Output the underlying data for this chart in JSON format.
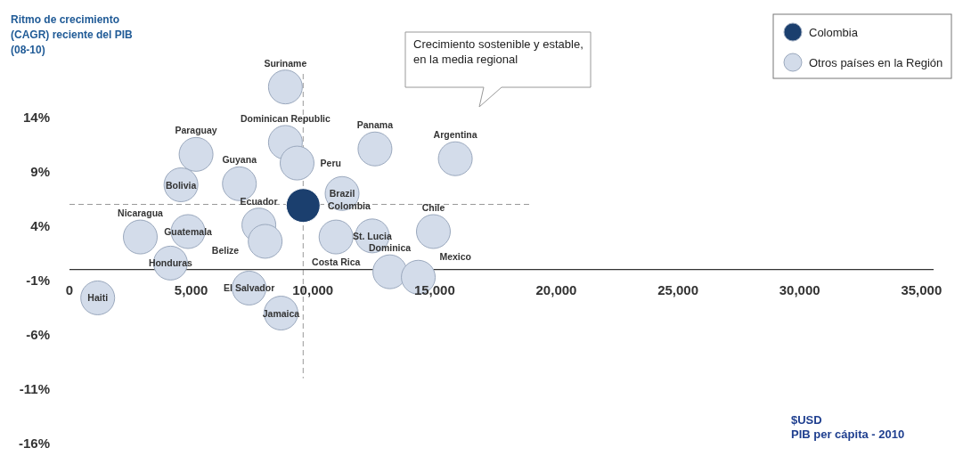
{
  "chart_data": {
    "type": "scatter",
    "ylabel": "Ritmo de crecimiento\n(CAGR) reciente del PIB\n(08-10)",
    "xlabel": "$USD\nPIB per cápita - 2010",
    "xlim": [
      0,
      35500
    ],
    "ylim": [
      -16,
      18
    ],
    "xticks": [
      0,
      {
        "value": 5000,
        "label": "5,000"
      },
      {
        "value": 10000,
        "label": "10,000"
      },
      {
        "value": 15000,
        "label": "15,000"
      },
      {
        "value": 20000,
        "label": "20,000"
      },
      {
        "value": 25000,
        "label": "25,000"
      },
      {
        "value": 30000,
        "label": "30,000"
      },
      {
        "value": 35000,
        "label": "35,000"
      }
    ],
    "yticks": [
      {
        "value": 14,
        "label": "14%"
      },
      {
        "value": 9,
        "label": "9%"
      },
      {
        "value": 4,
        "label": "4%"
      },
      {
        "value": -1,
        "label": "-1%"
      },
      {
        "value": -6,
        "label": "-6%"
      },
      {
        "value": -11,
        "label": "-11%"
      },
      {
        "value": -16,
        "label": "-16%"
      }
    ],
    "grid": false,
    "legend": "top right",
    "marker": "circle",
    "series": [
      {
        "name": "Colombia",
        "color": "#1b3f6e",
        "x": [
          9600
        ],
        "values": [
          5.9
        ]
      },
      {
        "name": "Otros países en la Región",
        "color": "#d3dcea",
        "x": [
          8870,
          8870,
          12550,
          15850,
          5200,
          6980,
          9350,
          4580,
          11200,
          7780,
          12440,
          14950,
          2910,
          4870,
          8040,
          10950,
          4150,
          13160,
          14330,
          7380,
          1160,
          8690
        ],
        "values": [
          16.8,
          11.7,
          11.1,
          10.2,
          10.6,
          7.9,
          9.8,
          7.8,
          7.0,
          4.1,
          3.1,
          3.5,
          3.0,
          3.5,
          2.6,
          3.0,
          0.6,
          -0.2,
          -0.7,
          -1.7,
          -2.6,
          -4.0
        ]
      }
    ],
    "ref_lines": [
      {
        "axis": "x",
        "value": 9600,
        "line_style": "dashed",
        "color": "#999999"
      },
      {
        "axis": "y",
        "value": 6.0,
        "line_style": "dashed",
        "color": "#999999"
      }
    ],
    "annotations": [
      "Crecimiento sostenible y estable, en la media regional",
      {
        "text": "Colombia",
        "x": 9600,
        "y": 5.9
      },
      {
        "text": "Suriname",
        "x": 8870,
        "y": 16.8
      },
      {
        "text": "Dominican Republic",
        "x": 8870,
        "y": 11.7
      },
      {
        "text": "Panama",
        "x": 12550,
        "y": 11.1
      },
      {
        "text": "Argentina",
        "x": 15850,
        "y": 10.2
      },
      {
        "text": "Paraguay",
        "x": 5200,
        "y": 10.6
      },
      {
        "text": "Guyana",
        "x": 6980,
        "y": 7.9
      },
      {
        "text": "Peru",
        "x": 9350,
        "y": 9.8
      },
      {
        "text": "Bolivia",
        "x": 4580,
        "y": 7.8
      },
      {
        "text": "Brazil",
        "x": 11200,
        "y": 7.0
      },
      {
        "text": "Ecuador",
        "x": 7780,
        "y": 4.1
      },
      {
        "text": "St. Lucia",
        "x": 12440,
        "y": 3.1
      },
      {
        "text": "Chile",
        "x": 14950,
        "y": 3.5
      },
      {
        "text": "Nicaragua",
        "x": 2910,
        "y": 3.0
      },
      {
        "text": "Guatemala",
        "x": 4870,
        "y": 3.5
      },
      {
        "text": "Belize",
        "x": 8040,
        "y": 2.6
      },
      {
        "text": "Costa Rica",
        "x": 10950,
        "y": 3.0
      },
      {
        "text": "Honduras",
        "x": 4150,
        "y": 0.6
      },
      {
        "text": "Dominica",
        "x": 13160,
        "y": -0.2
      },
      {
        "text": "Mexico",
        "x": 14330,
        "y": -0.7
      },
      {
        "text": "El Salvador",
        "x": 7380,
        "y": -1.7
      },
      {
        "text": "Haiti",
        "x": 1160,
        "y": -2.6
      },
      {
        "text": "Jamaica",
        "x": 8690,
        "y": -4.0
      }
    ]
  }
}
